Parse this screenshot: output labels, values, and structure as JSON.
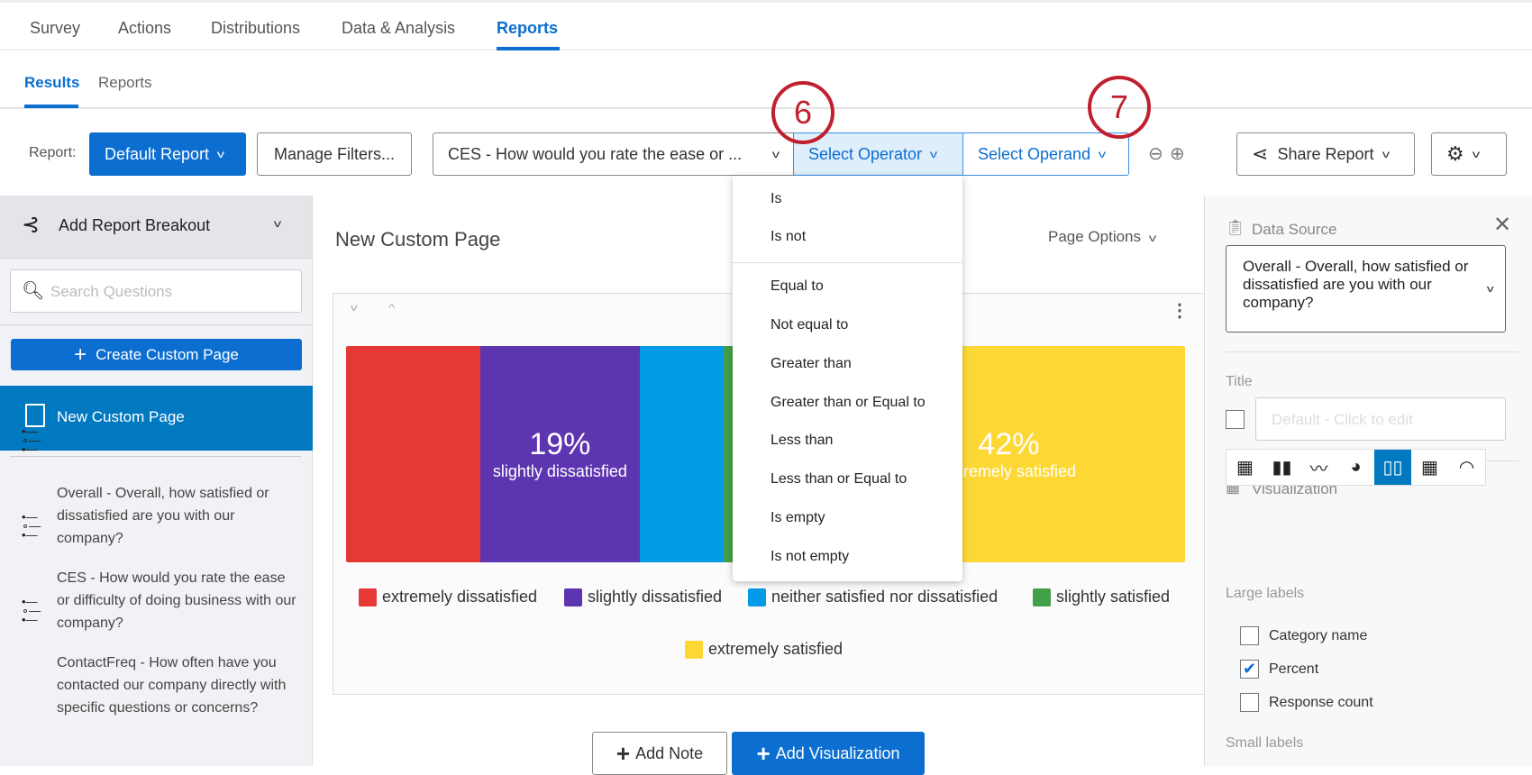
{
  "top_tabs": [
    {
      "label": "Survey"
    },
    {
      "label": "Actions"
    },
    {
      "label": "Distributions"
    },
    {
      "label": "Data & Analysis"
    },
    {
      "label": "Reports",
      "active": true
    }
  ],
  "sub_tabs": [
    {
      "label": "Results",
      "active": true
    },
    {
      "label": "Reports"
    }
  ],
  "toolbar": {
    "report_label": "Report:",
    "report_select": "Default Report",
    "manage_filters": "Manage Filters...",
    "filter_question": "CES - How would you rate the ease or ...",
    "operator": "Select Operator",
    "operand": "Select Operand",
    "share": "Share Report",
    "gear_icon": "gear-icon"
  },
  "annotations": [
    "6",
    "7"
  ],
  "operator_menu": {
    "group1": [
      "Is",
      "Is not"
    ],
    "group2": [
      "Equal to",
      "Not equal to",
      "Greater than",
      "Greater than or Equal to",
      "Less than",
      "Less than or Equal to",
      "Is empty",
      "Is not empty"
    ]
  },
  "sidebar": {
    "breakout": "Add Report Breakout",
    "search_placeholder": "Search Questions",
    "create_page": "Create Custom Page",
    "active_page": "New Custom Page",
    "questions": [
      "Overall - Overall, how satisfied or dissatisfied are you with our company?",
      "CES - How would you rate the ease or difficulty of doing business with our company?",
      "ContactFreq - How often have you contacted our company directly with specific questions or concerns?"
    ]
  },
  "main": {
    "page_title": "New Custom Page",
    "page_options": "Page Options",
    "add_note": "Add Note",
    "add_visualization": "Add Visualization"
  },
  "chart_data": {
    "type": "bar",
    "stacked": true,
    "orientation": "horizontal-breakdown",
    "categories": [
      "extremely dissatisfied",
      "slightly dissatisfied",
      "neither satisfied nor dissatisfied",
      "slightly satisfied",
      "extremely satisfied"
    ],
    "values": [
      16,
      19,
      10,
      13,
      42
    ],
    "labels": [
      {
        "pct": "19%",
        "name": "slightly dissatisfied"
      },
      {
        "pct": "42%",
        "name": "extremely satisfied"
      }
    ],
    "colors": [
      "#e53935",
      "#5e35b1",
      "#039be5",
      "#43a047",
      "#fdd835"
    ],
    "legend": "bottom"
  },
  "right_panel": {
    "data_source_label": "Data Source",
    "data_source": "Overall - Overall, how satisfied or dissatisfied are you with our company?",
    "title_label": "Title",
    "title_placeholder": "Default - Click to edit",
    "visualization_label": "Visualization",
    "viz_types": [
      "table",
      "bar",
      "line",
      "pie",
      "breakdown-bar",
      "grid",
      "gauge"
    ],
    "viz_active": "breakdown-bar",
    "large_labels": "Large labels",
    "options": [
      {
        "label": "Category name",
        "checked": false
      },
      {
        "label": "Percent",
        "checked": true
      },
      {
        "label": "Response count",
        "checked": false
      }
    ],
    "small_labels": "Small labels"
  }
}
